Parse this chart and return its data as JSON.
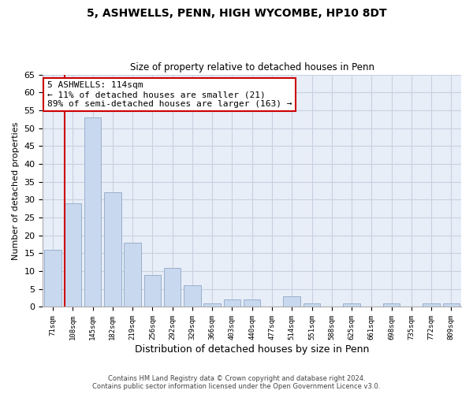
{
  "title": "5, ASHWELLS, PENN, HIGH WYCOMBE, HP10 8DT",
  "subtitle": "Size of property relative to detached houses in Penn",
  "xlabel": "Distribution of detached houses by size in Penn",
  "ylabel": "Number of detached properties",
  "bar_color": "#c8d8ee",
  "bar_edge_color": "#9ab0cc",
  "vline_color": "#cc0000",
  "annotation_title": "5 ASHWELLS: 114sqm",
  "annotation_line1": "← 11% of detached houses are smaller (21)",
  "annotation_line2": "89% of semi-detached houses are larger (163) →",
  "annotation_box_color": "#ffffff",
  "annotation_box_edge": "#cc0000",
  "categories": [
    "71sqm",
    "108sqm",
    "145sqm",
    "182sqm",
    "219sqm",
    "256sqm",
    "292sqm",
    "329sqm",
    "366sqm",
    "403sqm",
    "440sqm",
    "477sqm",
    "514sqm",
    "551sqm",
    "588sqm",
    "625sqm",
    "661sqm",
    "698sqm",
    "735sqm",
    "772sqm",
    "809sqm"
  ],
  "values": [
    16,
    29,
    53,
    32,
    18,
    9,
    11,
    6,
    1,
    2,
    2,
    0,
    3,
    1,
    0,
    1,
    0,
    1,
    0,
    1,
    1
  ],
  "ylim": [
    0,
    65
  ],
  "yticks": [
    0,
    5,
    10,
    15,
    20,
    25,
    30,
    35,
    40,
    45,
    50,
    55,
    60,
    65
  ],
  "footer_line1": "Contains HM Land Registry data © Crown copyright and database right 2024.",
  "footer_line2": "Contains public sector information licensed under the Open Government Licence v3.0.",
  "bg_color": "#ffffff",
  "plot_bg_color": "#e8eef8",
  "grid_color": "#c8d0e0"
}
